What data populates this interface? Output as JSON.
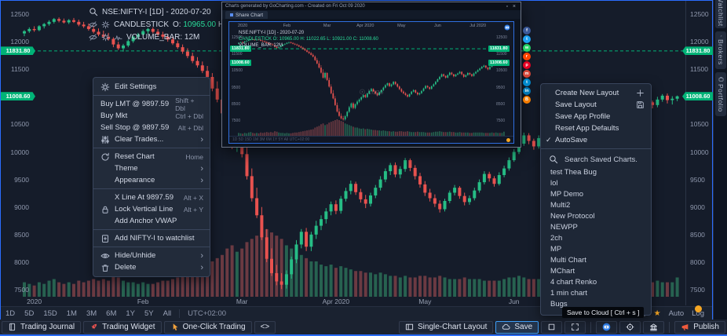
{
  "header": {
    "symbol_line": "NSE:NIFTY-I [1D] - 2020-07-20",
    "indicator_name": "CANDLESTICK",
    "ohlc": [
      {
        "label": "O:",
        "value": "10965.00"
      },
      {
        "label": "H:",
        "value": "11022.65"
      },
      {
        "label": "L:",
        "value": "10921.00"
      },
      {
        "label": "C:",
        "value": "11008.60"
      }
    ],
    "volume_line": "VOLUME_BAR: 12M"
  },
  "price_axis": {
    "ticks": [
      12500,
      12000,
      11500,
      11000,
      10500,
      10000,
      9500,
      9000,
      8500,
      8000,
      7500
    ],
    "tags": [
      {
        "value": "11831.80",
        "price": 11831.8,
        "dashed": true
      },
      {
        "value": "11008.60",
        "price": 11008.6,
        "dashed": false
      }
    ]
  },
  "timeframe_bar": {
    "ranges": [
      "1D",
      "5D",
      "15D",
      "1M",
      "3M",
      "6M",
      "1Y",
      "5Y",
      "All"
    ],
    "timezone": "UTC+02:00",
    "auto_label": "Auto",
    "log_label": "Log"
  },
  "context_menu": {
    "sections": [
      [
        {
          "icon": "gear",
          "label": "Edit Settings"
        }
      ],
      [
        {
          "label": "Buy LMT @ 9897.59",
          "shortcut": "Shift + Dbl"
        },
        {
          "label": "Buy Mkt",
          "shortcut": "Ctrl + Dbl"
        },
        {
          "label": "Sell Stop @ 9897.59",
          "shortcut": "Alt + Dbl"
        },
        {
          "icon": "sliders",
          "label": "Clear Trades...",
          "submenu": true
        }
      ],
      [
        {
          "icon": "refresh",
          "label": "Reset Chart",
          "shortcut": "Home"
        },
        {
          "label": "Theme",
          "submenu": true,
          "indent": true
        },
        {
          "label": "Appearance",
          "submenu": true,
          "indent": true
        }
      ],
      [
        {
          "label": "X Line At 9897.59",
          "shortcut": "Alt + X",
          "indent": true
        },
        {
          "icon": "lock",
          "label": "Lock Vertical Line",
          "shortcut": "Alt + Y"
        },
        {
          "label": "Add Anchor VWAP",
          "indent": true
        }
      ],
      [
        {
          "icon": "bookmarkplus",
          "label": "Add NIFTY-I to watchlist"
        }
      ],
      [
        {
          "icon": "eye",
          "label": "Hide/Unhide",
          "submenu": true
        },
        {
          "icon": "trash",
          "label": "Delete",
          "submenu": true
        }
      ]
    ]
  },
  "layout_menu": {
    "items": [
      {
        "label": "Create New Layout",
        "right_icon": "plus"
      },
      {
        "label": "Save Layout",
        "right_icon": "floppy"
      },
      {
        "label": "Save App Profile"
      },
      {
        "label": "Reset App Defaults"
      },
      {
        "label": "AutoSave",
        "checked": true
      }
    ]
  },
  "saved_charts": {
    "search_placeholder": "Search Saved Charts.",
    "items": [
      "test Thea Bug",
      "lol",
      "MP Demo",
      "Multi2",
      "New Protocol",
      "NEWPP",
      "2ch",
      "MP",
      "Multi Chart",
      "MChart",
      "4 chart Renko",
      "1 min chart",
      "Bugs"
    ]
  },
  "tooltip": {
    "text": "Save to Cloud [ Ctrl + s ]"
  },
  "bottom_toolbar": {
    "left": [
      {
        "icon": "journal",
        "label": "Trading Journal"
      },
      {
        "icon": "rocket",
        "label": "Trading Widget"
      },
      {
        "icon": "pointer",
        "label": "One-Click Trading"
      },
      {
        "label": "<>"
      }
    ],
    "right": [
      {
        "icon": "layout",
        "label": "Single-Chart Layout"
      },
      {
        "icon": "cloud",
        "label": "Save",
        "active": true
      },
      {
        "icon": "square"
      },
      {
        "icon": "expand"
      },
      {
        "icon": "camera",
        "divider_before": true
      },
      {
        "icon": "target"
      },
      {
        "icon": "bank"
      },
      {
        "icon": "megaphone",
        "label": "Publish",
        "divider_before": true
      }
    ]
  },
  "sidebar": {
    "tabs": [
      {
        "label": "Watchlist"
      },
      {
        "label": "Brokers",
        "icon": "wrench"
      },
      {
        "label": "Portfolio",
        "icon": "briefcase"
      }
    ]
  },
  "preview_window": {
    "title": "Charts generated by GoCharting.com - Created on Fri Oct 09 2020",
    "tab_label": "Share Chart",
    "symbol_line": "NSE:NIFTY-I [1D] - 2020-07-20",
    "candle_line": "CANDLESTICK O: 10965.00 H: 11022.65 L: 10921.00 C: 11008.60",
    "volume_line": "VOLUME_BAR: 12M",
    "dates": [
      {
        "text": "2020",
        "index": 2
      },
      {
        "text": "Feb",
        "index": 24
      },
      {
        "text": "Mar",
        "index": 44
      },
      {
        "text": "Apr 2020",
        "index": 63
      },
      {
        "text": "May",
        "index": 81
      },
      {
        "text": "Jun",
        "index": 99
      },
      {
        "text": "Jul 2020",
        "index": 119
      }
    ],
    "price_ticks": [
      12500,
      11500,
      10500,
      9500,
      8500,
      7500
    ],
    "tags": [
      {
        "value": "11831.80",
        "price": 11831.8
      },
      {
        "value": "11008.60",
        "price": 11008.6
      }
    ],
    "watermark": "Logo",
    "strip_text": "1D 5D 15D 1M 3M 6M 1Y 5Y All   UTC+02:00"
  },
  "social_share": [
    {
      "name": "facebook",
      "color": "#3b5998",
      "glyph": "f"
    },
    {
      "name": "twitter",
      "color": "#1da1f2",
      "glyph": "t"
    },
    {
      "name": "whatsapp",
      "color": "#25d366",
      "glyph": "w"
    },
    {
      "name": "reddit",
      "color": "#ff4500",
      "glyph": "r"
    },
    {
      "name": "pinterest",
      "color": "#e60023",
      "glyph": "p"
    },
    {
      "name": "gmail",
      "color": "#d44638",
      "glyph": "m"
    },
    {
      "name": "telegram",
      "color": "#0088cc",
      "glyph": "t"
    },
    {
      "name": "linkedin",
      "color": "#0077b5",
      "glyph": "in"
    },
    {
      "name": "blogger",
      "color": "#f57d00",
      "glyph": "B"
    }
  ],
  "colors": {
    "candle_up": "#26bd85",
    "candle_down": "#e8524f",
    "volume_up": "#2a6e57",
    "volume_down": "#7a4046",
    "price_tag": "#00b377",
    "accent_blue": "#2a6dff",
    "accent_orange": "#f5a623"
  },
  "chart_data": {
    "type": "candlestick",
    "symbol": "NSE:NIFTY-I",
    "interval": "1D",
    "as_of": "2020-07-20",
    "last_candle": {
      "open": 10965.0,
      "high": 11022.65,
      "low": 10921.0,
      "close": 11008.6
    },
    "volume_display": "12M",
    "price_line": 11831.8,
    "last_price": 11008.6,
    "y_range": [
      7500,
      12500
    ],
    "y_ticks": [
      12500,
      12000,
      11500,
      11000,
      10500,
      10000,
      9500,
      9000,
      8500,
      8000,
      7500
    ],
    "x_axis_labels": [
      {
        "text": "2020",
        "index": 2
      },
      {
        "text": "Feb",
        "index": 24
      },
      {
        "text": "Mar",
        "index": 44
      },
      {
        "text": "Apr 2020",
        "index": 63
      },
      {
        "text": "May",
        "index": 81
      },
      {
        "text": "Jun",
        "index": 99
      }
    ],
    "candles_ohlcv": [
      [
        12150,
        12210,
        12100,
        12190,
        9
      ],
      [
        12190,
        12260,
        12160,
        12230,
        8
      ],
      [
        12230,
        12280,
        12180,
        12210,
        7
      ],
      [
        12210,
        12300,
        12190,
        12280,
        9
      ],
      [
        12280,
        12340,
        12240,
        12320,
        8
      ],
      [
        12320,
        12390,
        12290,
        12360,
        10
      ],
      [
        12360,
        12430,
        12330,
        12410,
        11
      ],
      [
        12410,
        12440,
        12350,
        12380,
        9
      ],
      [
        12380,
        12420,
        12330,
        12350,
        8
      ],
      [
        12350,
        12410,
        12320,
        12390,
        9
      ],
      [
        12390,
        12430,
        12340,
        12360,
        8
      ],
      [
        12360,
        12400,
        12280,
        12310,
        10
      ],
      [
        12310,
        12360,
        12250,
        12280,
        9
      ],
      [
        12280,
        12330,
        12200,
        12230,
        10
      ],
      [
        12230,
        12290,
        12150,
        12180,
        11
      ],
      [
        12180,
        12240,
        12100,
        12130,
        10
      ],
      [
        12130,
        12200,
        12060,
        12090,
        11
      ],
      [
        12090,
        12160,
        12020,
        12050,
        10
      ],
      [
        12050,
        12080,
        11900,
        11950,
        13
      ],
      [
        11950,
        12000,
        11850,
        11880,
        12
      ],
      [
        11880,
        11960,
        11820,
        11930,
        10
      ],
      [
        11930,
        12040,
        11900,
        12010,
        9
      ],
      [
        12010,
        12110,
        11980,
        12090,
        9
      ],
      [
        12090,
        12160,
        12040,
        12130,
        8
      ],
      [
        12130,
        12220,
        12100,
        12190,
        9
      ],
      [
        12190,
        12250,
        12140,
        12230,
        8
      ],
      [
        12230,
        12260,
        12150,
        12180,
        8
      ],
      [
        12180,
        12230,
        12100,
        12130,
        9
      ],
      [
        12130,
        12180,
        12050,
        12090,
        10
      ],
      [
        12090,
        12140,
        12000,
        12040,
        10
      ],
      [
        12040,
        12090,
        11940,
        11970,
        11
      ],
      [
        11970,
        12020,
        11870,
        11900,
        12
      ],
      [
        11900,
        11950,
        11780,
        11820,
        13
      ],
      [
        11820,
        11880,
        11700,
        11740,
        14
      ],
      [
        11740,
        11800,
        11610,
        11650,
        15
      ],
      [
        11650,
        11720,
        11530,
        11570,
        16
      ],
      [
        11570,
        11640,
        11430,
        11470,
        17
      ],
      [
        11470,
        11560,
        11320,
        11360,
        18
      ],
      [
        11360,
        11430,
        11100,
        11150,
        22
      ],
      [
        11150,
        11280,
        10900,
        10950,
        24
      ],
      [
        10950,
        11100,
        10650,
        10700,
        26
      ],
      [
        10700,
        10850,
        10350,
        10400,
        30
      ],
      [
        10400,
        10600,
        10050,
        10100,
        32
      ],
      [
        10100,
        10450,
        10000,
        10380,
        28
      ],
      [
        10380,
        10420,
        9900,
        9960,
        30
      ],
      [
        9960,
        10100,
        9500,
        9560,
        34
      ],
      [
        9560,
        9700,
        9100,
        9160,
        36
      ],
      [
        9160,
        9350,
        8800,
        8850,
        38
      ],
      [
        8850,
        9000,
        8400,
        8450,
        40
      ],
      [
        8450,
        8600,
        8000,
        8060,
        42
      ],
      [
        8060,
        8250,
        7750,
        7800,
        40
      ],
      [
        7800,
        7950,
        7580,
        7650,
        38
      ],
      [
        7650,
        7800,
        7511,
        7590,
        36
      ],
      [
        7590,
        7850,
        7520,
        7780,
        32
      ],
      [
        7780,
        8100,
        7700,
        8050,
        30
      ],
      [
        8050,
        8400,
        7980,
        8320,
        28
      ],
      [
        8320,
        8600,
        8250,
        8550,
        26
      ],
      [
        8550,
        8620,
        8200,
        8280,
        24
      ],
      [
        8280,
        8550,
        8200,
        8500,
        22
      ],
      [
        8500,
        8750,
        8420,
        8660,
        22
      ],
      [
        8660,
        8850,
        8580,
        8780,
        20
      ],
      [
        8780,
        8980,
        8700,
        8920,
        19
      ],
      [
        8920,
        9100,
        8850,
        9050,
        20
      ],
      [
        9050,
        9120,
        8870,
        8930,
        18
      ],
      [
        8930,
        9200,
        8880,
        9150,
        19
      ],
      [
        9150,
        9350,
        9100,
        9290,
        18
      ],
      [
        9290,
        9480,
        9230,
        9420,
        17
      ],
      [
        9420,
        9460,
        9220,
        9270,
        16
      ],
      [
        9270,
        9330,
        9080,
        9140,
        16
      ],
      [
        9140,
        9220,
        8980,
        9060,
        15
      ],
      [
        9060,
        9260,
        9010,
        9210,
        15
      ],
      [
        9210,
        9400,
        9160,
        9350,
        14
      ],
      [
        9350,
        9560,
        9300,
        9500,
        15
      ],
      [
        9500,
        9700,
        9450,
        9650,
        14
      ],
      [
        9650,
        9800,
        9580,
        9760,
        13
      ],
      [
        9760,
        9810,
        9540,
        9590,
        13
      ],
      [
        9590,
        9740,
        9520,
        9690,
        12
      ],
      [
        9690,
        9890,
        9640,
        9850,
        13
      ],
      [
        9850,
        9880,
        9650,
        9710,
        12
      ],
      [
        9710,
        9760,
        9500,
        9560,
        12
      ],
      [
        9560,
        9620,
        9350,
        9410,
        13
      ],
      [
        9410,
        9470,
        9200,
        9260,
        13
      ],
      [
        9260,
        9330,
        9100,
        9160,
        12
      ],
      [
        9160,
        9230,
        9000,
        9060,
        12
      ],
      [
        9060,
        9120,
        8900,
        8960,
        13
      ],
      [
        8960,
        9150,
        8920,
        9110,
        12
      ],
      [
        9110,
        9300,
        9070,
        9260,
        11
      ],
      [
        9260,
        9400,
        9210,
        9350,
        11
      ],
      [
        9350,
        9380,
        9150,
        9200,
        11
      ],
      [
        9200,
        9260,
        9030,
        9090,
        12
      ],
      [
        9090,
        9210,
        9040,
        9160,
        11
      ],
      [
        9160,
        9350,
        9120,
        9300,
        11
      ],
      [
        9300,
        9500,
        9260,
        9450,
        11
      ],
      [
        9450,
        9650,
        9410,
        9600,
        10
      ],
      [
        9600,
        9640,
        9460,
        9520,
        10
      ],
      [
        9520,
        9560,
        9370,
        9420,
        10
      ],
      [
        9420,
        9630,
        9390,
        9580,
        10
      ],
      [
        9580,
        9750,
        9540,
        9700,
        11
      ],
      [
        9700,
        9900,
        9660,
        9850,
        12
      ],
      [
        9850,
        10050,
        9820,
        10000,
        12
      ],
      [
        10000,
        10200,
        9960,
        10150,
        13
      ],
      [
        10150,
        10350,
        10110,
        10300,
        12
      ],
      [
        10300,
        10340,
        10140,
        10200,
        11
      ],
      [
        10200,
        10240,
        10040,
        10100,
        11
      ],
      [
        10100,
        10300,
        10060,
        10250,
        11
      ],
      [
        10250,
        10450,
        10210,
        10400,
        12
      ],
      [
        10400,
        10440,
        10240,
        10300,
        11
      ],
      [
        10300,
        10330,
        10120,
        10180,
        11
      ],
      [
        10180,
        10330,
        10140,
        10280,
        10
      ],
      [
        10280,
        10400,
        10240,
        10350,
        10
      ],
      [
        10350,
        10500,
        10310,
        10450,
        11
      ],
      [
        10450,
        10480,
        10240,
        10300,
        10
      ],
      [
        10300,
        10340,
        10090,
        10150,
        10
      ],
      [
        10150,
        10300,
        10110,
        10250,
        10
      ],
      [
        10250,
        10430,
        10210,
        10380,
        10
      ],
      [
        10380,
        10410,
        10240,
        10300,
        9
      ],
      [
        10300,
        10330,
        10140,
        10200,
        9
      ],
      [
        10200,
        10400,
        10160,
        10350,
        10
      ],
      [
        10350,
        10500,
        10310,
        10450,
        10
      ],
      [
        10450,
        10600,
        10410,
        10550,
        10
      ],
      [
        10550,
        10700,
        10510,
        10650,
        10
      ],
      [
        10650,
        10800,
        10610,
        10750,
        10
      ],
      [
        10750,
        10870,
        10710,
        10820,
        9
      ],
      [
        10820,
        10850,
        10640,
        10700,
        9
      ],
      [
        10700,
        10740,
        10540,
        10600,
        9
      ],
      [
        10600,
        10800,
        10560,
        10750,
        9
      ],
      [
        10750,
        10950,
        10710,
        10900,
        10
      ],
      [
        10900,
        10930,
        10790,
        10850,
        9
      ],
      [
        10850,
        11000,
        10810,
        10950,
        10
      ],
      [
        10950,
        11050,
        10910,
        11020,
        9
      ],
      [
        11020,
        11060,
        10880,
        10940,
        9
      ],
      [
        10940,
        11010,
        10860,
        10965,
        9
      ],
      [
        10965,
        11022.65,
        10921,
        11008.6,
        12
      ]
    ]
  }
}
